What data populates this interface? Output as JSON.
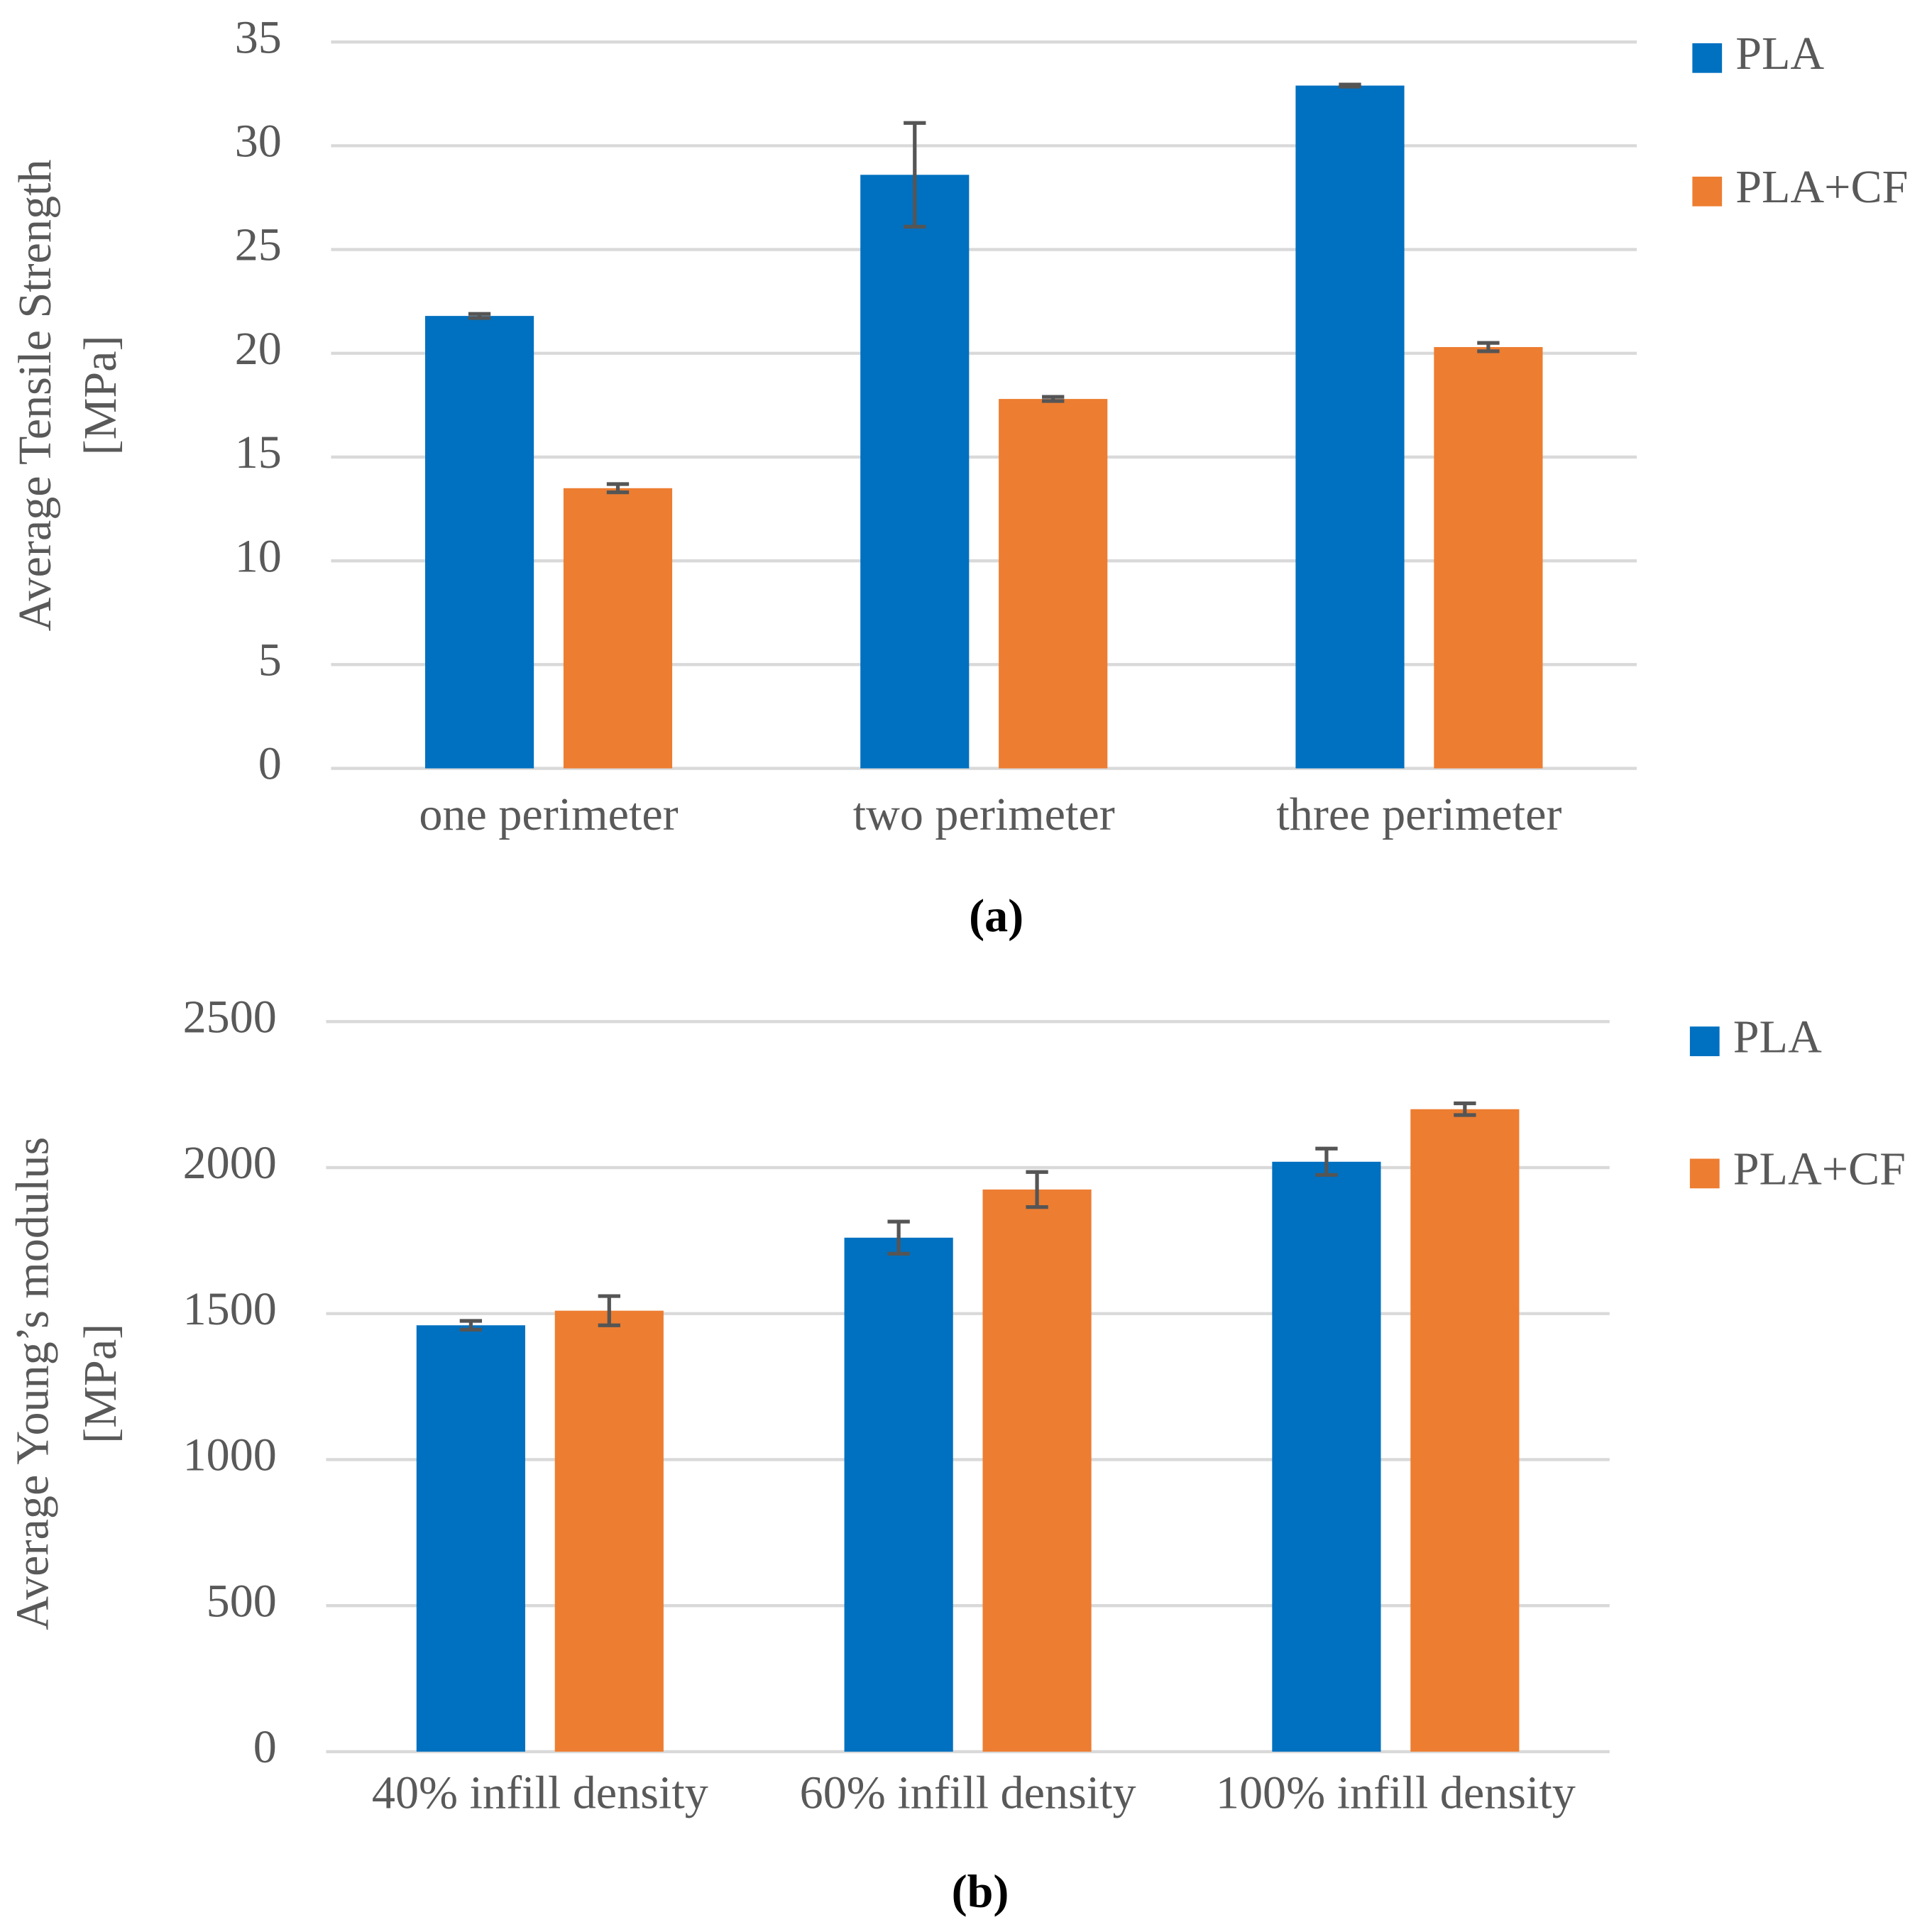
{
  "chart_data": [
    {
      "type": "bar",
      "ylabel": [
        "Average Tensile Strength",
        "[MPa]"
      ],
      "caption": "(a)",
      "categories": [
        "one perimeter",
        "two perimeter",
        "three perimeter"
      ],
      "series": [
        {
          "name": "PLA",
          "color": "#0070C0",
          "values": [
            21.8,
            28.6,
            32.9
          ],
          "errors": [
            0.1,
            2.5,
            0.05
          ]
        },
        {
          "name": "PLA+CF",
          "color": "#ED7D31",
          "values": [
            13.5,
            17.8,
            20.3
          ],
          "errors": [
            0.2,
            0.1,
            0.2
          ]
        }
      ],
      "ylim": [
        0,
        35
      ],
      "yticks": [
        0,
        5,
        10,
        15,
        20,
        25,
        30,
        35
      ],
      "grid": true,
      "legend": "right"
    },
    {
      "type": "bar",
      "ylabel": [
        "Average Young’s modulus",
        "[MPa]"
      ],
      "caption": "(b)",
      "categories": [
        "40% infill density",
        "60% infill density",
        "100% infill density"
      ],
      "series": [
        {
          "name": "PLA",
          "color": "#0070C0",
          "values": [
            1460,
            1760,
            2020
          ],
          "errors": [
            15,
            55,
            45
          ]
        },
        {
          "name": "PLA+CF",
          "color": "#ED7D31",
          "values": [
            1510,
            1925,
            2200
          ],
          "errors": [
            50,
            60,
            20
          ]
        }
      ],
      "ylim": [
        0,
        2500
      ],
      "yticks": [
        0,
        500,
        1000,
        1500,
        2000,
        2500
      ],
      "grid": true,
      "legend": "right"
    }
  ]
}
